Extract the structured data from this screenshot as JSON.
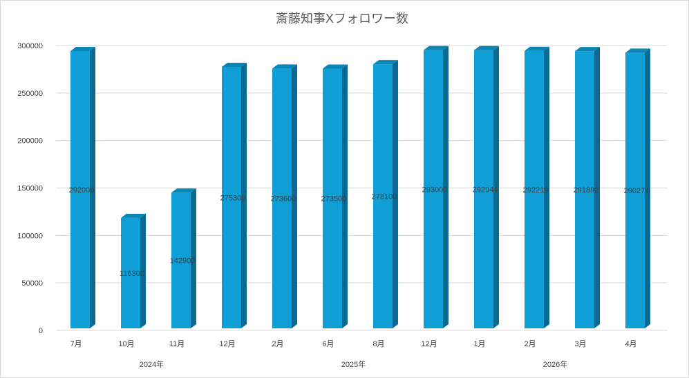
{
  "chart_data": {
    "type": "bar",
    "title": "斎藤知事Xフォロワー数",
    "categories": [
      "7月",
      "10月",
      "11月",
      "12月",
      "2月",
      "6月",
      "8月",
      "12月",
      "1月",
      "2月",
      "3月",
      "4月"
    ],
    "groups": [
      {
        "label": "2024年",
        "start": 0,
        "end": 3
      },
      {
        "label": "2025年",
        "start": 4,
        "end": 7
      },
      {
        "label": "2026年",
        "start": 8,
        "end": 11
      }
    ],
    "values": [
      292000,
      116300,
      142900,
      275300,
      273600,
      273500,
      278100,
      293000,
      292944,
      292219,
      291892,
      290274
    ],
    "data_labels": [
      "292000",
      "116300",
      "142900",
      "275300",
      "273600",
      "273500",
      "278100",
      "293000",
      "292944",
      "292219",
      "291892",
      "290274"
    ],
    "ylim": [
      0,
      300000
    ],
    "yticks": [
      "0",
      "50000",
      "100000",
      "150000",
      "200000",
      "250000",
      "300000"
    ],
    "grid": true,
    "legend": "none",
    "colors": {
      "front": "#0f9ed5",
      "side": "#0a6a91",
      "top": "#0c84b4",
      "grid": "#d9d9d9"
    }
  }
}
